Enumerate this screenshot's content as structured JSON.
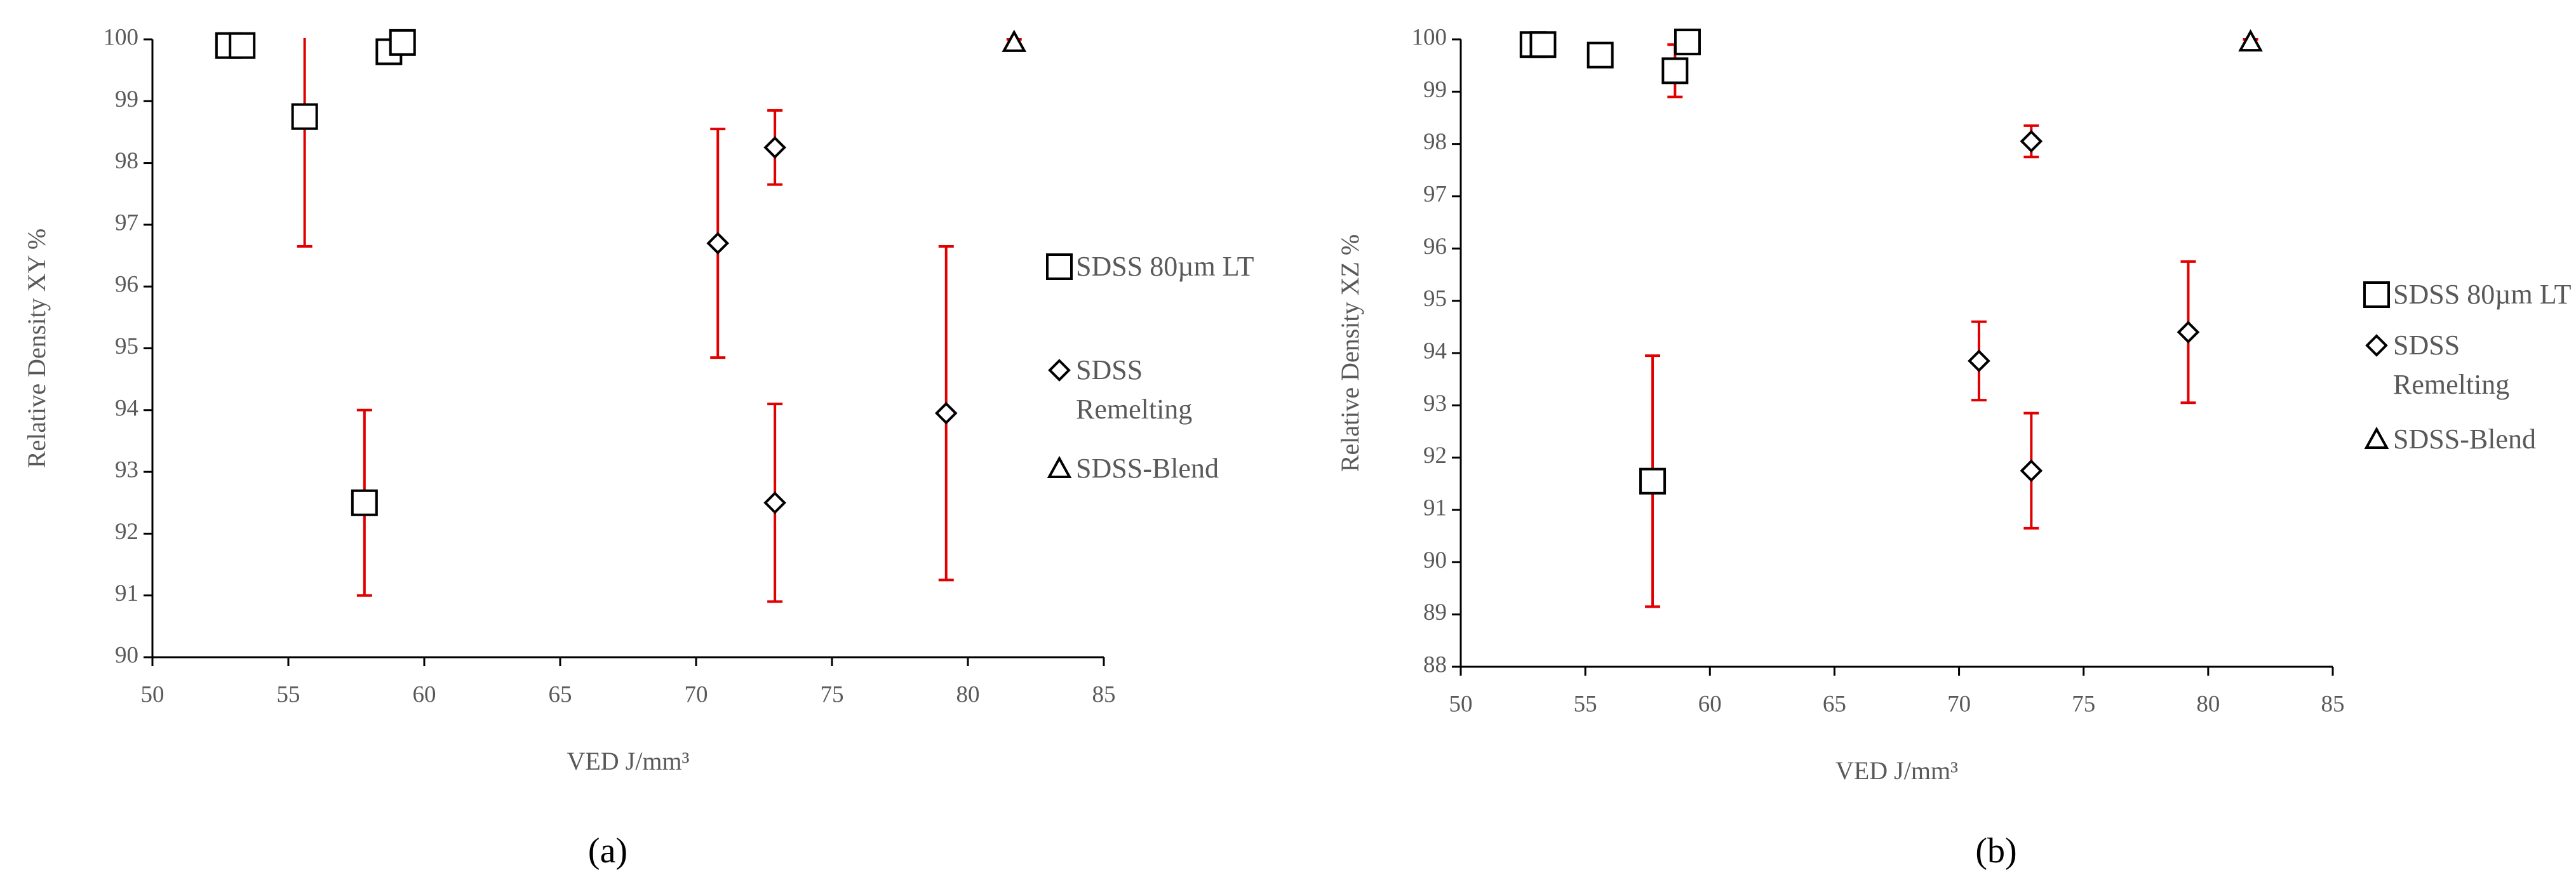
{
  "chart_data": [
    {
      "type": "scatter",
      "caption": "(a)",
      "xlabel": "VED J/mm³",
      "ylabel": "Relative Density XY %",
      "xlim": [
        50,
        85
      ],
      "xticks": [
        50,
        55,
        60,
        65,
        70,
        75,
        80,
        85
      ],
      "ylim": [
        90,
        100
      ],
      "yticks": [
        90,
        91,
        92,
        93,
        94,
        95,
        96,
        97,
        98,
        99,
        100
      ],
      "error_color": "#e00000",
      "series": [
        {
          "name": "SDSS 80µm LT",
          "marker": "square",
          "color": "#000000",
          "x": [
            52.8,
            53.3,
            55.6,
            57.8,
            58.7,
            59.2
          ],
          "values": [
            99.9,
            99.9,
            98.75,
            92.5,
            99.8,
            99.95
          ],
          "errors": [
            0.05,
            0.05,
            2.1,
            1.5,
            0.1,
            0.05
          ]
        },
        {
          "name": "SDSS Remelting",
          "marker": "diamond",
          "color": "#000000",
          "x": [
            70.8,
            72.9,
            72.9,
            79.2
          ],
          "values": [
            96.7,
            98.25,
            92.5,
            93.95
          ],
          "errors": [
            1.85,
            0.6,
            1.6,
            2.7
          ]
        },
        {
          "name": "SDSS-Blend",
          "marker": "triangle",
          "color": "#000000",
          "x": [
            81.7
          ],
          "values": [
            99.95
          ],
          "errors": [
            0.05
          ]
        }
      ]
    },
    {
      "type": "scatter",
      "caption": "(b)",
      "xlabel": "VED J/mm³",
      "ylabel": "Relative Density XZ %",
      "xlim": [
        50,
        85
      ],
      "xticks": [
        50,
        55,
        60,
        65,
        70,
        75,
        80,
        85
      ],
      "ylim": [
        88,
        100
      ],
      "yticks": [
        88,
        89,
        90,
        91,
        92,
        93,
        94,
        95,
        96,
        97,
        98,
        99,
        100
      ],
      "error_color": "#e00000",
      "series": [
        {
          "name": "SDSS 80µm LT",
          "marker": "square",
          "color": "#000000",
          "x": [
            52.9,
            53.3,
            55.6,
            57.7,
            58.6,
            59.1
          ],
          "values": [
            99.9,
            99.9,
            99.7,
            91.55,
            99.4,
            99.95
          ],
          "errors": [
            0.1,
            0.05,
            0.2,
            2.4,
            0.5,
            0.05
          ]
        },
        {
          "name": "SDSS Remelting",
          "marker": "diamond",
          "color": "#000000",
          "x": [
            70.8,
            72.9,
            72.9,
            79.2
          ],
          "values": [
            93.85,
            98.05,
            91.75,
            94.4
          ],
          "errors": [
            0.75,
            0.3,
            1.1,
            1.35
          ]
        },
        {
          "name": "SDSS-Blend",
          "marker": "triangle",
          "color": "#000000",
          "x": [
            81.7
          ],
          "values": [
            99.95
          ],
          "errors": [
            0.05
          ]
        }
      ]
    }
  ]
}
